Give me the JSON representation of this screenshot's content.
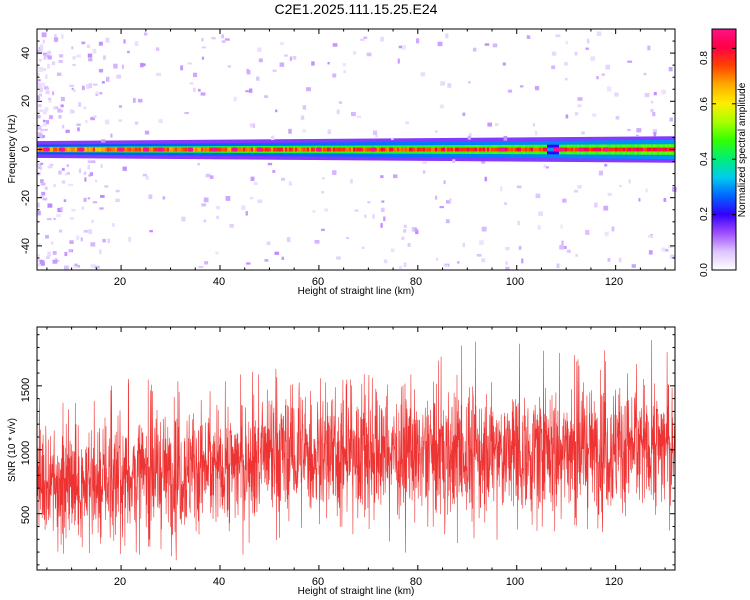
{
  "title": "C2E1.2025.111.15.25.E24",
  "colors": {
    "snr_line": "#ee3333",
    "frame": "#000000",
    "colormap": [
      "#ffffff",
      "#ddc4ff",
      "#9e4dff",
      "#3300ff",
      "#0066ff",
      "#00ccee",
      "#00ee77",
      "#33ff00",
      "#aaff00",
      "#ffee00",
      "#ffaa00",
      "#ff4400",
      "#ff0044",
      "#ff1188"
    ]
  },
  "chart_data": [
    {
      "type": "heatmap",
      "xlabel": "Height of straight line (km)",
      "ylabel": "Frequency (Hz)",
      "xlim": [
        3,
        132
      ],
      "ylim": [
        -50,
        50
      ],
      "x_ticks": [
        20,
        40,
        60,
        80,
        100,
        120
      ],
      "y_ticks": [
        -40,
        -20,
        0,
        20,
        40
      ],
      "x_tick_labels": [
        "20",
        "40",
        "60",
        "80",
        "100",
        "120"
      ],
      "y_tick_labels": [
        "-40",
        "-20",
        "0",
        "20",
        "40"
      ],
      "grid": false,
      "colorbar": {
        "label": "Normalized spectral amplitude",
        "range": [
          0,
          0.87
        ],
        "ticks": [
          0.0,
          0.2,
          0.4,
          0.6,
          0.8
        ],
        "tick_labels": [
          "0.0",
          "0.2",
          "0.4",
          "0.6",
          "0.8"
        ],
        "position": "right"
      },
      "band": {
        "center_hz": 0,
        "halfwidth_hz_left": 2,
        "halfwidth_hz_right": 4,
        "peak_amplitude_left": 0.75,
        "peak_amplitude_right": 0.85,
        "outer_amplitude": 0.25,
        "hotspot_x": [
          5,
          8,
          12,
          20,
          25,
          28,
          34,
          39,
          43,
          48,
          60,
          71,
          97,
          108.5,
          113,
          118
        ],
        "notch_x": 107
      }
    },
    {
      "type": "line",
      "xlabel": "Height of straight line (km)",
      "ylabel": "SNR (10 * v/v)",
      "xlim": [
        3,
        132
      ],
      "ylim": [
        60,
        1960
      ],
      "x_ticks": [
        20,
        40,
        60,
        80,
        100,
        120
      ],
      "y_ticks": [
        500,
        1000,
        1500
      ],
      "x_tick_labels": [
        "20",
        "40",
        "60",
        "80",
        "100",
        "120"
      ],
      "y_tick_labels": [
        "500",
        "1000",
        "1500"
      ],
      "grid": false,
      "series": [
        {
          "x": [
            3,
            10,
            20,
            30,
            40,
            50,
            60,
            70,
            80,
            90,
            100,
            110,
            120,
            125,
            132
          ],
          "mean": [
            700,
            730,
            780,
            830,
            880,
            930,
            960,
            980,
            960,
            960,
            980,
            1000,
            1020,
            1050,
            1040
          ],
          "spread": [
            300,
            300,
            310,
            320,
            320,
            330,
            330,
            330,
            330,
            330,
            330,
            330,
            340,
            340,
            340
          ],
          "max": [
            1490,
            1370,
            1620,
            1540,
            1600,
            1670,
            1560,
            1620,
            1600,
            1880,
            1920,
            1760,
            1800,
            1930,
            1930
          ],
          "min": [
            130,
            200,
            180,
            120,
            90,
            270,
            420,
            290,
            150,
            240,
            330,
            330,
            340,
            430,
            350
          ]
        }
      ]
    }
  ]
}
